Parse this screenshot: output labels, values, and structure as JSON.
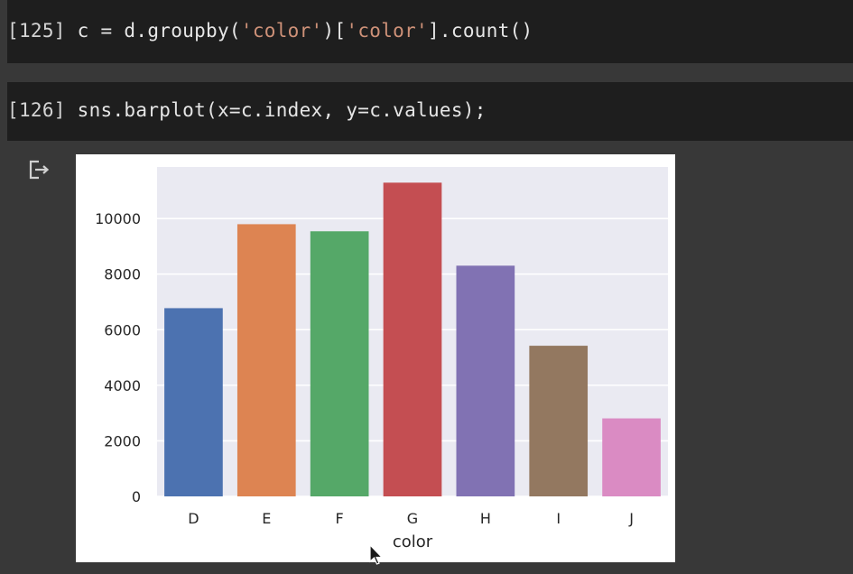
{
  "cells": [
    {
      "prompt": "[125]",
      "code_pre": " c = d.groupby(",
      "str1": "'color'",
      "code_mid": ")[",
      "str2": "'color'",
      "code_post": "].count()"
    },
    {
      "prompt": "[126]",
      "code": " sns.barplot(x=c.index, y=c.values);"
    }
  ],
  "output_icon": "output-exit-icon",
  "chart_data": {
    "type": "bar",
    "categories": [
      "D",
      "E",
      "F",
      "G",
      "H",
      "I",
      "J"
    ],
    "values": [
      6775,
      9797,
      9542,
      11292,
      8304,
      5422,
      2808
    ],
    "colors": [
      "#4c72b0",
      "#dd8452",
      "#55a868",
      "#c44e52",
      "#8172b3",
      "#937860",
      "#da8bc3"
    ],
    "xlabel": "color",
    "ylabel": "",
    "yticks": [
      0,
      2000,
      4000,
      6000,
      8000,
      10000
    ],
    "ylim": [
      0,
      11857
    ],
    "grid": true,
    "background": "#eaeaf2"
  }
}
